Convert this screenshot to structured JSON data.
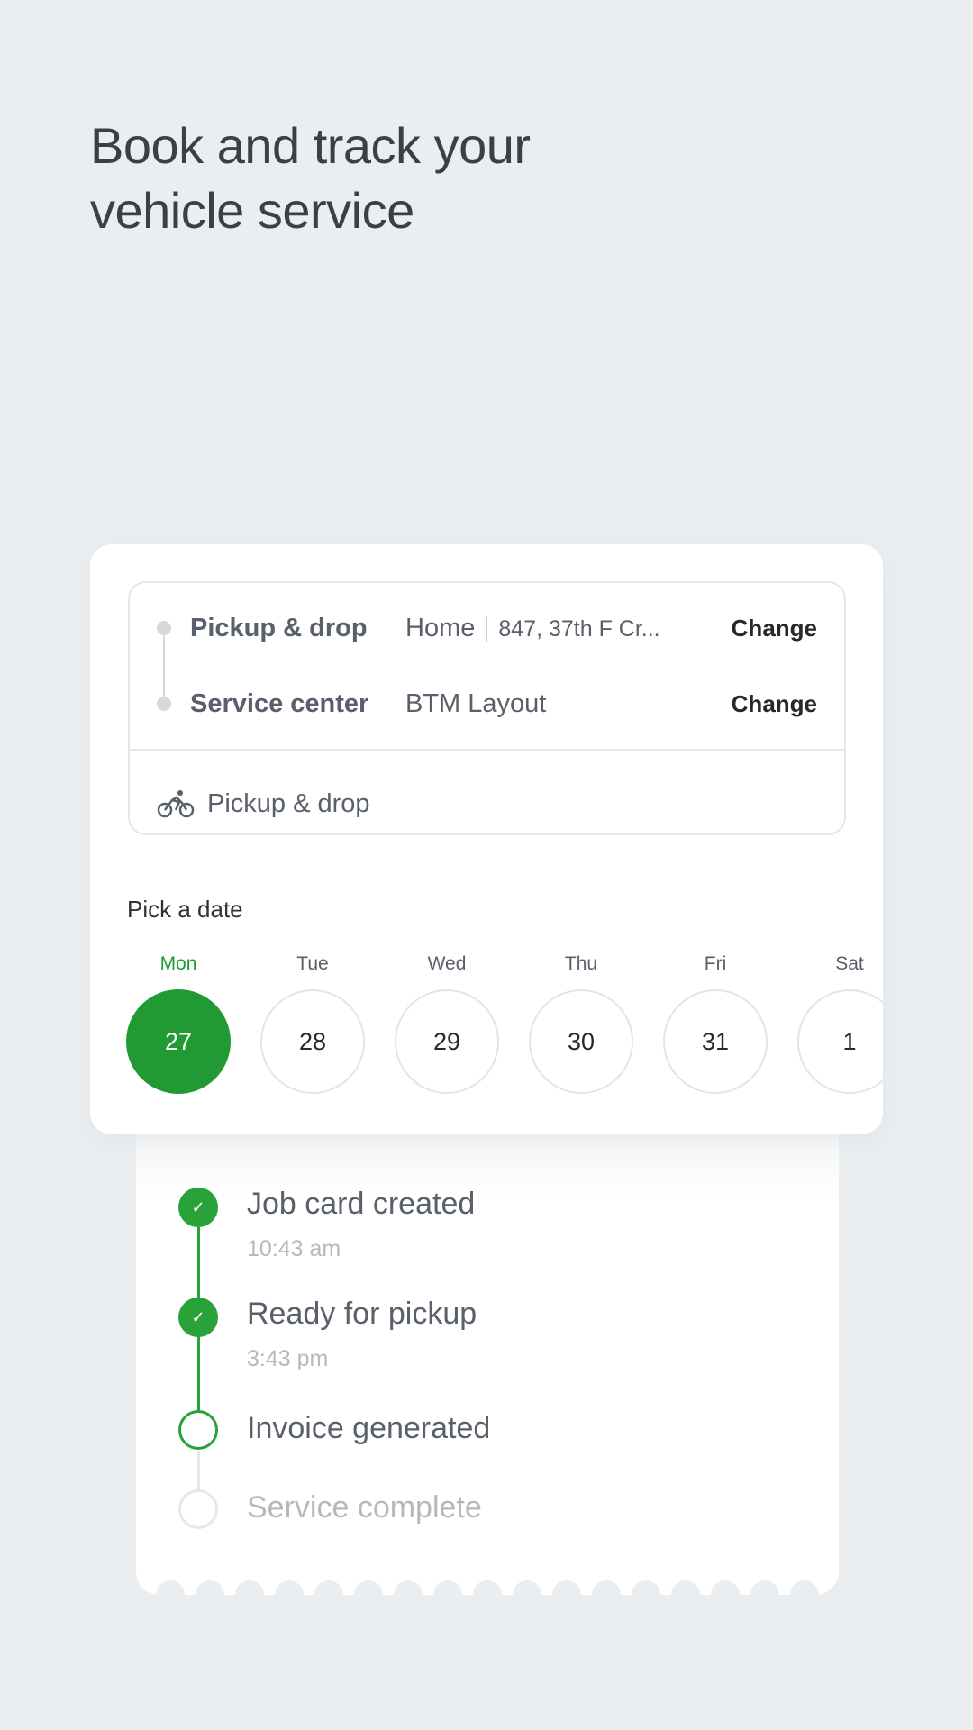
{
  "headline": [
    "Book and track your",
    "vehicle service"
  ],
  "booking": {
    "pickup_label": "Pickup & drop",
    "pickup_place": "Home",
    "pickup_address": "847, 37th F Cr...",
    "pickup_change": "Change",
    "center_label": "Service center",
    "center_value": "BTM Layout",
    "center_change": "Change",
    "mode_icon": "bicycle-icon",
    "mode_label": "Pickup & drop"
  },
  "date_picker": {
    "label": "Pick a date",
    "selected_index": 0,
    "accent": "#229a34",
    "days": [
      {
        "name": "Mon",
        "date": "27"
      },
      {
        "name": "Tue",
        "date": "28"
      },
      {
        "name": "Wed",
        "date": "29"
      },
      {
        "name": "Thu",
        "date": "30"
      },
      {
        "name": "Fri",
        "date": "31"
      },
      {
        "name": "Sat",
        "date": "1"
      }
    ]
  },
  "tracking": {
    "steps": [
      {
        "title": "Job card created",
        "time": "10:43 am",
        "status": "done"
      },
      {
        "title": "Ready for pickup",
        "time": "3:43 pm",
        "status": "done"
      },
      {
        "title": "Invoice generated",
        "status": "current"
      },
      {
        "title": "Service complete",
        "status": "pending"
      }
    ]
  }
}
